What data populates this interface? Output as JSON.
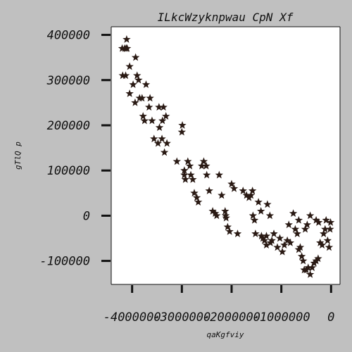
{
  "chart_data": {
    "type": "scatter",
    "title": "ILkcWzyknpwau CpN Xf",
    "xlabel": "qaKgfviy",
    "ylabel": "gTlQ p",
    "xlim": [
      -4420000,
      180000
    ],
    "ylim": [
      -152000,
      418000
    ],
    "grid": false,
    "legend": "none",
    "marker": "star",
    "colors": {
      "background": "#c0c0c0",
      "plot_bg": "#ffffff",
      "marker": "#2a1a14"
    },
    "xticks": [
      {
        "value": -4000000,
        "label": "-4000000"
      },
      {
        "value": -3000000,
        "label": "-3000000"
      },
      {
        "value": -2000000,
        "label": "-2000000"
      },
      {
        "value": -1000000,
        "label": "-1000000"
      },
      {
        "value": 0,
        "label": "0"
      }
    ],
    "yticks": [
      {
        "value": 400000,
        "label": "400000"
      },
      {
        "value": 300000,
        "label": "300000"
      },
      {
        "value": 200000,
        "label": "200000"
      },
      {
        "value": 100000,
        "label": "100000"
      },
      {
        "value": 0,
        "label": "0"
      },
      {
        "value": -100000,
        "label": "-100000"
      }
    ],
    "points": [
      [
        -4200000,
        370000
      ],
      [
        -4150000,
        370000
      ],
      [
        -4120000,
        370000
      ],
      [
        -4110000,
        390000
      ],
      [
        -4190000,
        310000
      ],
      [
        -4130000,
        310000
      ],
      [
        -4050000,
        330000
      ],
      [
        -3930000,
        350000
      ],
      [
        -3900000,
        310000
      ],
      [
        -3870000,
        300000
      ],
      [
        -4050000,
        270000
      ],
      [
        -3980000,
        290000
      ],
      [
        -3940000,
        250000
      ],
      [
        -3850000,
        260000
      ],
      [
        -3720000,
        290000
      ],
      [
        -3640000,
        260000
      ],
      [
        -3660000,
        240000
      ],
      [
        -3780000,
        220000
      ],
      [
        -3750000,
        210000
      ],
      [
        -3600000,
        210000
      ],
      [
        -3560000,
        170000
      ],
      [
        -3480000,
        160000
      ],
      [
        -3460000,
        240000
      ],
      [
        -3370000,
        240000
      ],
      [
        -3390000,
        210000
      ],
      [
        -3320000,
        220000
      ],
      [
        -3300000,
        160000
      ],
      [
        -3350000,
        140000
      ],
      [
        -3400000,
        170000
      ],
      [
        -3100000,
        120000
      ],
      [
        -2990000,
        200000
      ],
      [
        -3000000,
        185000
      ],
      [
        -2950000,
        90000
      ],
      [
        -2930000,
        80000
      ],
      [
        -2880000,
        120000
      ],
      [
        -2840000,
        110000
      ],
      [
        -2820000,
        90000
      ],
      [
        -2780000,
        80000
      ],
      [
        -2700000,
        40000
      ],
      [
        -2670000,
        30000
      ],
      [
        -2600000,
        110000
      ],
      [
        -2560000,
        120000
      ],
      [
        -2510000,
        110000
      ],
      [
        -2500000,
        90000
      ],
      [
        -2450000,
        55000
      ],
      [
        -2380000,
        10000
      ],
      [
        -2330000,
        5000
      ],
      [
        -2300000,
        0
      ],
      [
        -2250000,
        90000
      ],
      [
        -2200000,
        45000
      ],
      [
        -2130000,
        10000
      ],
      [
        -2110000,
        -5000
      ],
      [
        -2080000,
        -25000
      ],
      [
        -2040000,
        -35000
      ],
      [
        -2000000,
        70000
      ],
      [
        -1950000,
        60000
      ],
      [
        -1880000,
        -40000
      ],
      [
        -1770000,
        55000
      ],
      [
        -1650000,
        40000
      ],
      [
        -1610000,
        45000
      ],
      [
        -1580000,
        55000
      ],
      [
        -1570000,
        0
      ],
      [
        -1540000,
        -10000
      ],
      [
        -1520000,
        -40000
      ],
      [
        -1460000,
        30000
      ],
      [
        -1410000,
        10000
      ],
      [
        -1400000,
        -45000
      ],
      [
        -1370000,
        -50000
      ],
      [
        -1340000,
        -55000
      ],
      [
        -1300000,
        -45000
      ],
      [
        -1280000,
        25000
      ],
      [
        -1230000,
        0
      ],
      [
        -1220000,
        -60000
      ],
      [
        -1190000,
        -55000
      ],
      [
        -1150000,
        -40000
      ],
      [
        -1080000,
        -70000
      ],
      [
        -1030000,
        -50000
      ],
      [
        -980000,
        -80000
      ],
      [
        -940000,
        -65000
      ],
      [
        -880000,
        -55000
      ],
      [
        -850000,
        -20000
      ],
      [
        -820000,
        -60000
      ],
      [
        -760000,
        5000
      ],
      [
        -720000,
        -30000
      ],
      [
        -680000,
        -40000
      ],
      [
        -650000,
        -10000
      ],
      [
        -620000,
        -70000
      ],
      [
        -590000,
        -90000
      ],
      [
        -560000,
        -100000
      ],
      [
        -540000,
        -120000
      ],
      [
        -500000,
        -120000
      ],
      [
        -460000,
        -115000
      ],
      [
        -420000,
        -130000
      ],
      [
        -380000,
        -115000
      ],
      [
        -340000,
        -105000
      ],
      [
        -300000,
        -100000
      ],
      [
        -260000,
        -95000
      ],
      [
        -220000,
        -60000
      ],
      [
        -180000,
        -65000
      ],
      [
        -150000,
        -40000
      ],
      [
        -120000,
        -30000
      ],
      [
        -100000,
        -10000
      ],
      [
        -70000,
        -55000
      ],
      [
        -40000,
        -70000
      ],
      [
        -20000,
        -30000
      ],
      [
        -10000,
        -15000
      ],
      [
        -420000,
        0
      ],
      [
        -480000,
        -20000
      ],
      [
        -520000,
        -30000
      ],
      [
        -300000,
        -10000
      ],
      [
        -250000,
        -15000
      ],
      [
        -650000,
        -75000
      ],
      [
        -1300000,
        -65000
      ],
      [
        -1700000,
        45000
      ],
      [
        -2120000,
        0
      ],
      [
        -2750000,
        50000
      ],
      [
        -2950000,
        100000
      ],
      [
        -3450000,
        195000
      ],
      [
        -3800000,
        260000
      ],
      [
        -4100000,
        370000
      ]
    ]
  }
}
